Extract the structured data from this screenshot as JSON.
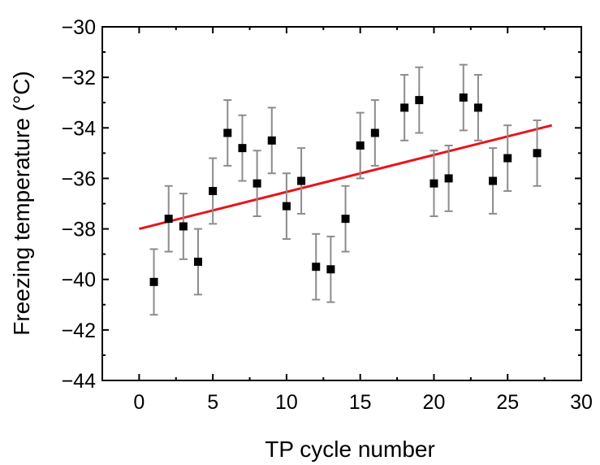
{
  "chart_data": {
    "type": "scatter",
    "xlabel": "TP cycle number",
    "ylabel": "Freezing temperature (°C)",
    "xlim": [
      -2.5,
      30
    ],
    "ylim": [
      -44,
      -30
    ],
    "xticks": [
      0,
      5,
      10,
      15,
      20,
      25,
      30
    ],
    "yticks": [
      -44,
      -42,
      -40,
      -38,
      -36,
      -34,
      -32,
      -30
    ],
    "grid": false,
    "series": [
      {
        "color": "#000000",
        "marker": "square",
        "error_color": "#8c8c8c",
        "points": [
          {
            "x": 1,
            "y": -40.1,
            "err": 1.3
          },
          {
            "x": 2,
            "y": -37.6,
            "err": 1.3
          },
          {
            "x": 3,
            "y": -37.9,
            "err": 1.3
          },
          {
            "x": 4,
            "y": -39.3,
            "err": 1.3
          },
          {
            "x": 5,
            "y": -36.5,
            "err": 1.3
          },
          {
            "x": 6,
            "y": -34.2,
            "err": 1.3
          },
          {
            "x": 7,
            "y": -34.8,
            "err": 1.3
          },
          {
            "x": 8,
            "y": -36.2,
            "err": 1.3
          },
          {
            "x": 9,
            "y": -34.5,
            "err": 1.3
          },
          {
            "x": 10,
            "y": -37.1,
            "err": 1.3
          },
          {
            "x": 11,
            "y": -36.1,
            "err": 1.3
          },
          {
            "x": 12,
            "y": -39.5,
            "err": 1.3
          },
          {
            "x": 13,
            "y": -39.6,
            "err": 1.3
          },
          {
            "x": 14,
            "y": -37.6,
            "err": 1.3
          },
          {
            "x": 15,
            "y": -34.7,
            "err": 1.3
          },
          {
            "x": 16,
            "y": -34.2,
            "err": 1.3
          },
          {
            "x": 18,
            "y": -33.2,
            "err": 1.3
          },
          {
            "x": 19,
            "y": -32.9,
            "err": 1.3
          },
          {
            "x": 20,
            "y": -36.2,
            "err": 1.3
          },
          {
            "x": 21,
            "y": -36.0,
            "err": 1.3
          },
          {
            "x": 22,
            "y": -32.8,
            "err": 1.3
          },
          {
            "x": 23,
            "y": -33.2,
            "err": 1.3
          },
          {
            "x": 24,
            "y": -36.1,
            "err": 1.3
          },
          {
            "x": 25,
            "y": -35.2,
            "err": 1.3
          },
          {
            "x": 27,
            "y": -35.0,
            "err": 1.3
          }
        ]
      }
    ],
    "fit_line": {
      "color": "#e8141a",
      "x": [
        0,
        28
      ],
      "y": [
        -38.0,
        -33.9
      ]
    }
  }
}
